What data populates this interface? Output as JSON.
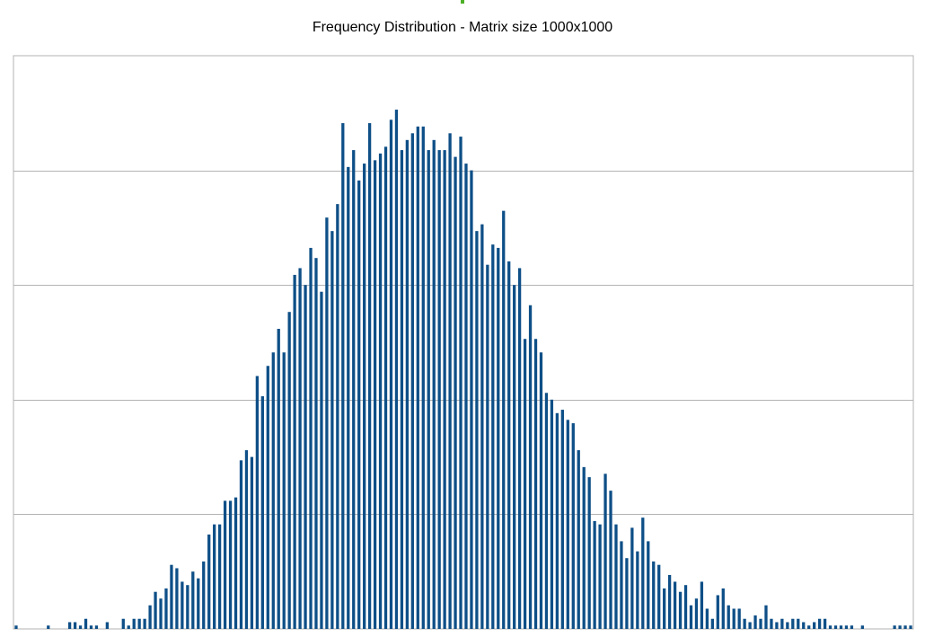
{
  "chart_data": {
    "type": "bar",
    "title": "Frequency Distribution - Matrix size 1000x1000",
    "xlabel": "",
    "ylabel": "",
    "ylim": [
      0,
      42.5
    ],
    "grid": true,
    "bar_color": "#0e4f87",
    "grid_color": "#b3b3b3",
    "border_color": "#b3b3b3",
    "values": [
      0.25,
      0,
      0,
      0,
      0,
      0,
      0.25,
      0,
      0,
      0,
      0.5,
      0.5,
      0.25,
      0.75,
      0.25,
      0.25,
      0,
      0.5,
      0,
      0,
      0.75,
      0.25,
      0.75,
      0.75,
      0.75,
      1.75,
      2.75,
      2.25,
      3,
      4.75,
      4.5,
      3.5,
      3.25,
      4.25,
      3.75,
      5,
      7,
      7.75,
      7.75,
      9.5,
      9.5,
      9.75,
      12.5,
      13.25,
      12.75,
      18.75,
      17.25,
      19.5,
      20.5,
      22.25,
      20.5,
      23.5,
      26.25,
      26.75,
      25.5,
      28.25,
      27.5,
      25,
      30.5,
      29.5,
      31.5,
      37.5,
      34.25,
      35.5,
      33.25,
      34.5,
      37.5,
      34.75,
      35.25,
      35.75,
      37.75,
      38.5,
      35.5,
      36.25,
      36.75,
      37.25,
      37.25,
      35.5,
      36.25,
      35.5,
      35.5,
      36.75,
      35,
      36.5,
      34.5,
      34,
      29.5,
      30,
      27,
      28.5,
      28.25,
      31,
      27.25,
      25.5,
      26.75,
      21.5,
      24,
      21.5,
      20.5,
      17.5,
      17,
      16,
      16.25,
      15.5,
      15.25,
      13.25,
      12,
      11.25,
      8,
      7.75,
      11.5,
      10.25,
      7.75,
      6.5,
      5.25,
      7.5,
      5.75,
      8.25,
      6.5,
      5,
      4.75,
      3,
      4,
      3.5,
      2.75,
      3.25,
      1.75,
      2.25,
      3.5,
      1.5,
      0.75,
      2.5,
      3,
      1.75,
      1.5,
      1.5,
      0.75,
      0.5,
      1,
      0.75,
      1.75,
      0.75,
      0.5,
      0.75,
      0.5,
      0.75,
      0.75,
      0.5,
      0.25,
      0.5,
      0.75,
      0.75,
      0.25,
      0.25,
      0.25,
      0.25,
      0.25,
      0,
      0.25,
      0,
      0,
      0,
      0,
      0,
      0.25,
      0.25,
      0.25,
      0.25
    ]
  }
}
